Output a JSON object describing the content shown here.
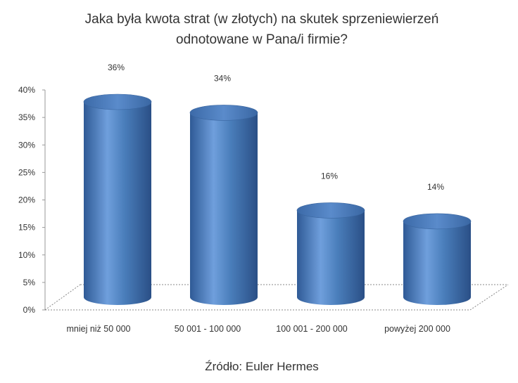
{
  "chart_data": {
    "type": "bar",
    "title_lines": [
      "Jaka była kwota strat (w złotych) na skutek sprzeniewierzeń",
      "odnotowane w Pana/i firmie?"
    ],
    "categories": [
      "mniej niż 50 000",
      "50 001 - 100 000",
      "100 001 - 200 000",
      "powyżej 200 000"
    ],
    "values": [
      36,
      34,
      16,
      14
    ],
    "data_labels": [
      "36%",
      "34%",
      "16%",
      "14%"
    ],
    "yticks": [
      "0%",
      "5%",
      "10%",
      "15%",
      "20%",
      "25%",
      "30%",
      "35%",
      "40%"
    ],
    "ylim": [
      0,
      40
    ],
    "bar_color": "#4a7ebb",
    "grid": false,
    "legend": "none"
  },
  "footer": {
    "source": "Źródło: Euler Hermes"
  }
}
